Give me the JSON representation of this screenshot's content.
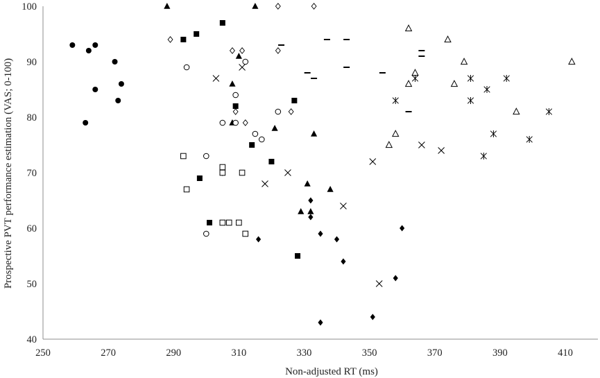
{
  "chart_data": {
    "type": "scatter",
    "title": "",
    "xlabel": "Non-adjusted RT (ms)",
    "ylabel": "Prospective PVT performance estimation (VAS; 0-100)",
    "xlim": [
      250,
      420
    ],
    "ylim": [
      40,
      100
    ],
    "xticks": [
      250,
      270,
      290,
      310,
      330,
      350,
      370,
      390,
      410
    ],
    "yticks": [
      40,
      50,
      60,
      70,
      80,
      90,
      100
    ],
    "grid": false,
    "legend": "none",
    "marker_color": "#000000",
    "series": [
      {
        "marker": "filled-circle",
        "points": [
          [
            259,
            93
          ],
          [
            264,
            92
          ],
          [
            266,
            93
          ],
          [
            272,
            90
          ],
          [
            266,
            85
          ],
          [
            274,
            86
          ],
          [
            273,
            83
          ],
          [
            263,
            79
          ]
        ]
      },
      {
        "marker": "open-diamond",
        "points": [
          [
            289,
            94
          ],
          [
            322,
            100
          ],
          [
            333,
            100
          ],
          [
            308,
            92
          ],
          [
            311,
            92
          ],
          [
            322,
            92
          ],
          [
            309,
            81
          ],
          [
            312,
            79
          ],
          [
            326,
            81
          ],
          [
            305,
            70
          ]
        ]
      },
      {
        "marker": "filled-triangle",
        "points": [
          [
            288,
            100
          ],
          [
            315,
            100
          ],
          [
            310,
            91
          ],
          [
            308,
            86
          ],
          [
            308,
            79
          ],
          [
            321,
            78
          ],
          [
            333,
            77
          ],
          [
            331,
            68
          ],
          [
            338,
            67
          ],
          [
            332,
            63
          ],
          [
            329,
            63
          ]
        ]
      },
      {
        "marker": "filled-square",
        "points": [
          [
            293,
            94
          ],
          [
            297,
            95
          ],
          [
            305,
            97
          ],
          [
            309,
            82
          ],
          [
            314,
            75
          ],
          [
            320,
            72
          ],
          [
            327,
            83
          ],
          [
            298,
            69
          ],
          [
            301,
            61
          ],
          [
            328,
            55
          ]
        ]
      },
      {
        "marker": "open-circle",
        "points": [
          [
            294,
            89
          ],
          [
            312,
            90
          ],
          [
            309,
            84
          ],
          [
            305,
            79
          ],
          [
            309,
            79
          ],
          [
            315,
            77
          ],
          [
            317,
            76
          ],
          [
            322,
            81
          ],
          [
            300,
            73
          ],
          [
            300,
            59
          ]
        ]
      },
      {
        "marker": "open-square",
        "points": [
          [
            293,
            73
          ],
          [
            294,
            67
          ],
          [
            305,
            71
          ],
          [
            305,
            70
          ],
          [
            311,
            70
          ],
          [
            305,
            61
          ],
          [
            307,
            61
          ],
          [
            310,
            61
          ],
          [
            312,
            59
          ]
        ]
      },
      {
        "marker": "x",
        "points": [
          [
            303,
            87
          ],
          [
            311,
            89
          ],
          [
            318,
            68
          ],
          [
            325,
            70
          ],
          [
            342,
            64
          ],
          [
            351,
            72
          ],
          [
            353,
            50
          ],
          [
            366,
            75
          ],
          [
            372,
            74
          ]
        ]
      },
      {
        "marker": "filled-diamond",
        "points": [
          [
            316,
            58
          ],
          [
            332,
            65
          ],
          [
            332,
            62
          ],
          [
            335,
            59
          ],
          [
            340,
            58
          ],
          [
            342,
            54
          ],
          [
            335,
            43
          ],
          [
            351,
            44
          ],
          [
            358,
            51
          ],
          [
            360,
            60
          ]
        ]
      },
      {
        "marker": "dash",
        "points": [
          [
            323,
            93
          ],
          [
            331,
            88
          ],
          [
            333,
            87
          ],
          [
            337,
            94
          ],
          [
            343,
            94
          ],
          [
            343,
            89
          ],
          [
            354,
            88
          ],
          [
            362,
            81
          ],
          [
            366,
            92
          ],
          [
            366,
            91
          ]
        ]
      },
      {
        "marker": "open-triangle",
        "points": [
          [
            362,
            96
          ],
          [
            374,
            94
          ],
          [
            379,
            90
          ],
          [
            412,
            90
          ],
          [
            364,
            88
          ],
          [
            362,
            86
          ],
          [
            376,
            86
          ],
          [
            358,
            77
          ],
          [
            356,
            75
          ],
          [
            395,
            81
          ]
        ]
      },
      {
        "marker": "asterisk",
        "points": [
          [
            358,
            83
          ],
          [
            364,
            87
          ],
          [
            381,
            87
          ],
          [
            381,
            83
          ],
          [
            386,
            85
          ],
          [
            392,
            87
          ],
          [
            388,
            77
          ],
          [
            385,
            73
          ],
          [
            399,
            76
          ],
          [
            405,
            81
          ]
        ]
      }
    ]
  }
}
